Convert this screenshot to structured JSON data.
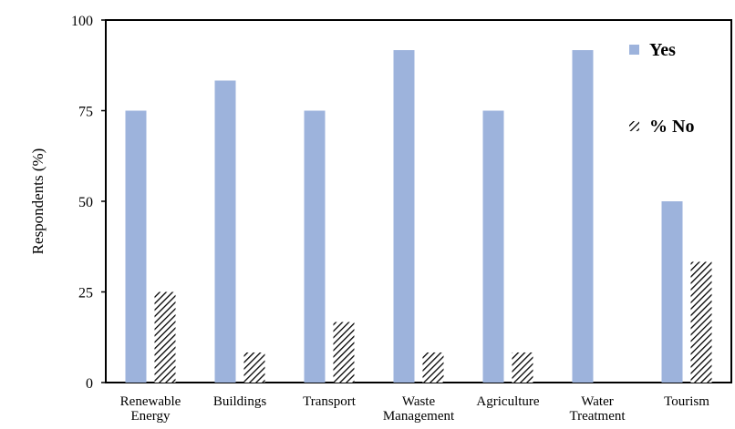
{
  "chart_data": {
    "type": "bar",
    "title": "",
    "xlabel": "",
    "ylabel": "Respondents  (%)",
    "ylim": [
      0,
      100
    ],
    "yticks": [
      0,
      25,
      50,
      75,
      100
    ],
    "categories": [
      [
        "Renewable",
        "Energy"
      ],
      [
        "Buildings"
      ],
      [
        "Transport"
      ],
      [
        "Waste",
        "Management"
      ],
      [
        "Agriculture"
      ],
      [
        "Water",
        "Treatment"
      ],
      [
        "Tourism"
      ]
    ],
    "series": [
      {
        "name": "Yes",
        "color": "#9db3dc",
        "pattern": "solid",
        "values": [
          75,
          83.3,
          75,
          91.7,
          75,
          91.7,
          50
        ]
      },
      {
        "name": "% No",
        "color": "#000000",
        "pattern": "diagonal-hatch",
        "values": [
          25,
          8.3,
          16.7,
          8.3,
          8.3,
          0,
          33.3
        ]
      }
    ],
    "legend": {
      "position": "top-right",
      "labels": [
        "Yes",
        "% No"
      ]
    },
    "grid": false
  }
}
